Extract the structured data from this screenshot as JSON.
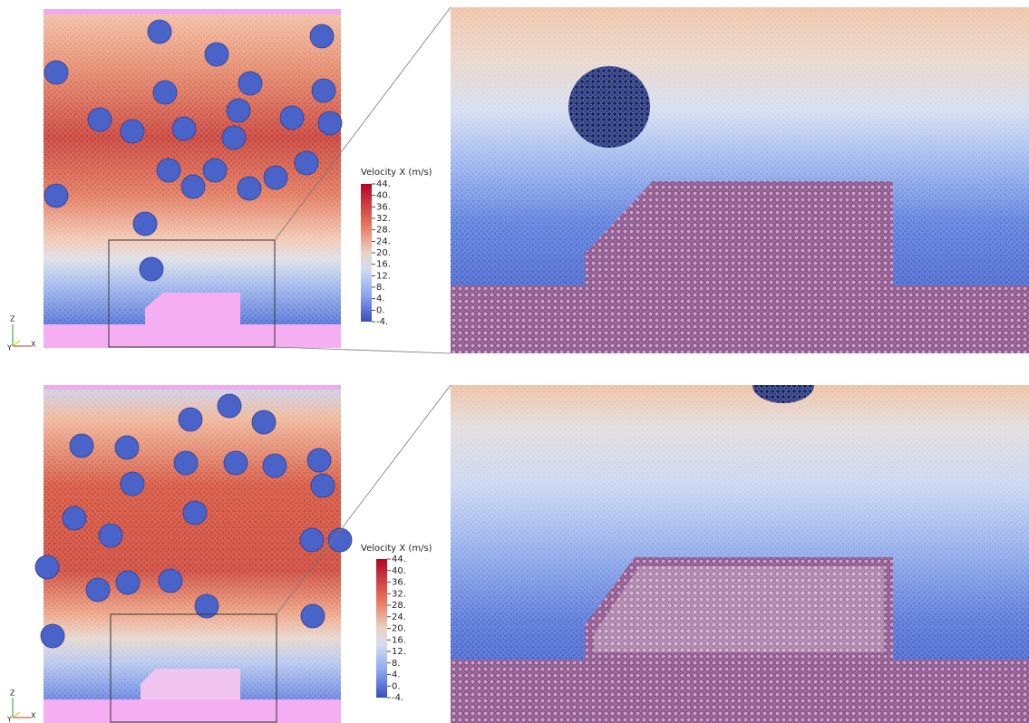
{
  "panels": [
    {
      "colorbar": {
        "title": "Velocity X (m/s)",
        "labels": [
          "44.",
          "40.",
          "36.",
          "32.",
          "28.",
          "24.",
          "20.",
          "16.",
          "12.",
          "8.",
          "4.",
          "0.",
          "-4."
        ]
      },
      "axes": {
        "z": "Z",
        "y": "Y",
        "x": "X"
      }
    },
    {
      "colorbar": {
        "title": "Velocity X (m/s)",
        "labels": [
          "44.",
          "40.",
          "36.",
          "32.",
          "28.",
          "24.",
          "20.",
          "16.",
          "12.",
          "8.",
          "4.",
          "0.",
          "-4."
        ]
      },
      "axes": {
        "z": "Z",
        "y": "Y",
        "x": "X"
      }
    }
  ]
}
